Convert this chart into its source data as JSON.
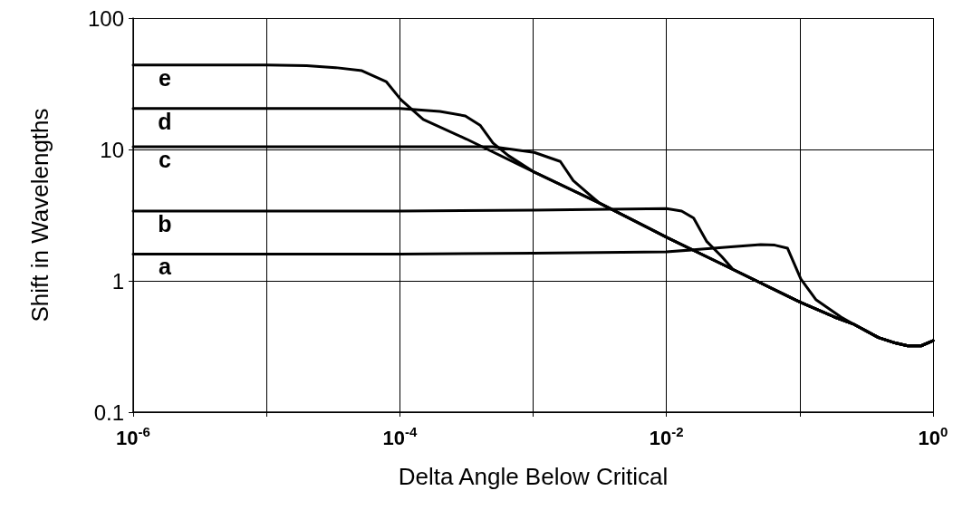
{
  "chart_data": {
    "type": "line",
    "xlabel": "Delta Angle Below Critical",
    "ylabel": "Shift in Wavelengths",
    "log": "xy",
    "grid": true,
    "legend": false,
    "marker": "none",
    "line_style": "solid",
    "xlim": [
      1e-06,
      1
    ],
    "ylim": [
      0.1,
      100
    ],
    "xticks": [
      {
        "value": 1e-06,
        "label": "10$^{-6}$"
      },
      {
        "value": 1e-05,
        "label": null
      },
      {
        "value": 0.0001,
        "label": "10$^{-4}$"
      },
      {
        "value": 0.001,
        "label": null
      },
      {
        "value": 0.01,
        "label": "10$^{-2}$"
      },
      {
        "value": 0.1,
        "label": null
      },
      {
        "value": 1,
        "label": "10$^{0}$"
      }
    ],
    "yticks": [
      0.1,
      1,
      10,
      100
    ],
    "series": [
      {
        "name": "e",
        "color": "#000000",
        "x": [
          1e-06,
          1e-05,
          2e-05,
          3.3e-05,
          5.2e-05,
          7.9e-05,
          0.000102,
          0.00015,
          0.000316,
          0.001,
          0.00316,
          0.01,
          0.0316,
          0.1,
          0.182,
          0.251,
          0.389,
          0.501,
          0.646,
          0.813,
          1
        ],
        "values": [
          44,
          44,
          43.5,
          42,
          39.8,
          32.9,
          23.9,
          16.9,
          12,
          6.8,
          3.9,
          2.15,
          1.22,
          0.69,
          0.53,
          0.47,
          0.37,
          0.34,
          0.32,
          0.32,
          0.35
        ]
      },
      {
        "name": "d",
        "color": "#000000",
        "x": [
          1e-06,
          1e-05,
          0.0001,
          0.0002,
          0.00031,
          0.0004,
          0.0005,
          0.00065,
          0.001,
          0.00316,
          0.01,
          0.0316,
          0.1,
          0.182,
          0.251,
          0.389,
          0.501,
          0.646,
          0.813,
          1
        ],
        "values": [
          20.5,
          20.5,
          20.5,
          19.5,
          18,
          15.3,
          11.2,
          9,
          6.8,
          3.9,
          2.15,
          1.22,
          0.69,
          0.53,
          0.47,
          0.37,
          0.34,
          0.32,
          0.32,
          0.35
        ]
      },
      {
        "name": "c",
        "color": "#000000",
        "x": [
          1e-06,
          1e-05,
          0.0001,
          0.0005,
          0.00102,
          0.0016,
          0.002,
          0.0026,
          0.00316,
          0.01,
          0.0316,
          0.1,
          0.182,
          0.251,
          0.389,
          0.501,
          0.646,
          0.813,
          1
        ],
        "values": [
          10.5,
          10.5,
          10.5,
          10.5,
          9.5,
          8.1,
          5.8,
          4.6,
          3.9,
          2.15,
          1.22,
          0.69,
          0.53,
          0.47,
          0.37,
          0.34,
          0.32,
          0.32,
          0.35
        ]
      },
      {
        "name": "b",
        "color": "#000000",
        "x": [
          1e-06,
          1e-05,
          0.0001,
          0.001,
          0.01,
          0.013,
          0.016,
          0.02,
          0.026,
          0.0316,
          0.1,
          0.182,
          0.251,
          0.389,
          0.501,
          0.646,
          0.813,
          1
        ],
        "values": [
          3.4,
          3.4,
          3.4,
          3.45,
          3.55,
          3.4,
          3,
          2,
          1.53,
          1.22,
          0.69,
          0.53,
          0.47,
          0.37,
          0.34,
          0.32,
          0.32,
          0.35
        ]
      },
      {
        "name": "a",
        "color": "#000000",
        "x": [
          1e-06,
          1e-05,
          0.0001,
          0.001,
          0.01,
          0.032,
          0.051,
          0.065,
          0.081,
          0.102,
          0.132,
          0.204,
          0.251,
          0.389,
          0.501,
          0.646,
          0.813,
          1
        ],
        "values": [
          1.6,
          1.6,
          1.6,
          1.62,
          1.66,
          1.82,
          1.89,
          1.87,
          1.77,
          1.03,
          0.72,
          0.53,
          0.47,
          0.37,
          0.34,
          0.32,
          0.32,
          0.35
        ]
      }
    ]
  }
}
